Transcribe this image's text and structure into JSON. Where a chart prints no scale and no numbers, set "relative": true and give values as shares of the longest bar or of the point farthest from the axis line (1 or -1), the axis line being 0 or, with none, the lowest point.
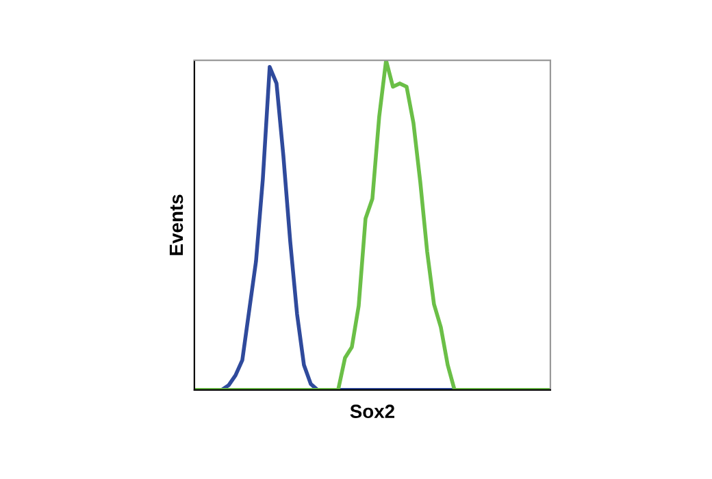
{
  "chart_data": {
    "type": "line",
    "relative": true,
    "xlabel": "Sox2",
    "ylabel": "Events",
    "categories": [
      null,
      null,
      null,
      null,
      null,
      null,
      null,
      null,
      null,
      null,
      null,
      null,
      null,
      null,
      null,
      null,
      null,
      null,
      null,
      null,
      null,
      null,
      null,
      null,
      null,
      null,
      null,
      null,
      null,
      null,
      null,
      null,
      null,
      null,
      null,
      null,
      null,
      null,
      null,
      null,
      null,
      null,
      null,
      null,
      null,
      null,
      null,
      null,
      null,
      null,
      null,
      null,
      null
    ],
    "series": [
      {
        "color": "#2f4a9c",
        "values": [
          null,
          null,
          0,
          0,
          0,
          0.014,
          0.044,
          0.09,
          0.24,
          0.39,
          0.64,
          0.98,
          0.93,
          0.71,
          0.45,
          0.23,
          0.076,
          0.018,
          0,
          0,
          0,
          0,
          0,
          0,
          0,
          0,
          0,
          0,
          0,
          0,
          0,
          0,
          0,
          0,
          0,
          0,
          0,
          0,
          0,
          0,
          null,
          null,
          null,
          null,
          null,
          null,
          null,
          null,
          null,
          null,
          null,
          null,
          null
        ]
      },
      {
        "color": "#6bbf47",
        "values": [
          0,
          0,
          0,
          0,
          0,
          0,
          0,
          0,
          0,
          0,
          0,
          0,
          0,
          0,
          0,
          0,
          0,
          0,
          0,
          0,
          0,
          0,
          0.097,
          0.13,
          0.255,
          0.52,
          0.58,
          0.83,
          1,
          0.92,
          0.93,
          0.92,
          0.81,
          0.63,
          0.42,
          0.26,
          0.19,
          0.076,
          0,
          0,
          0,
          0,
          0,
          0,
          0,
          0,
          0,
          0,
          0,
          0,
          0,
          0,
          0
        ]
      }
    ],
    "grid": false,
    "legend": false
  }
}
